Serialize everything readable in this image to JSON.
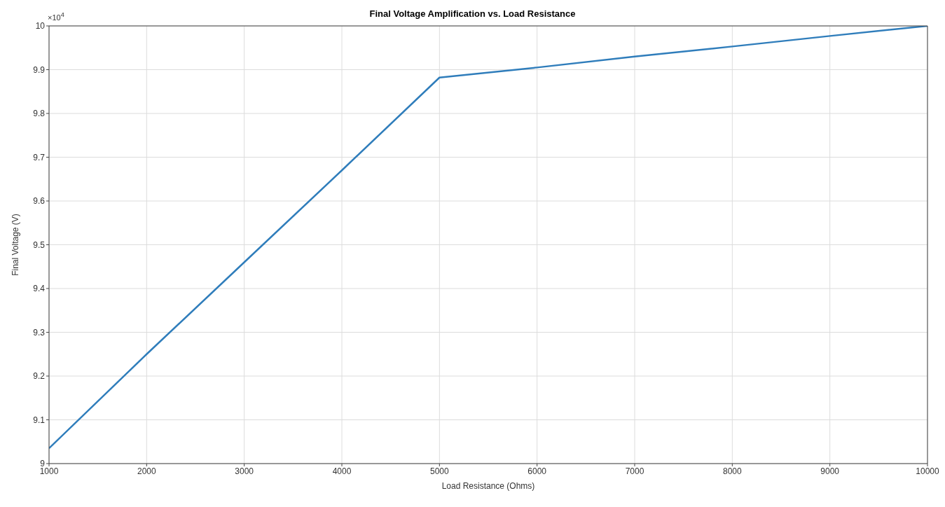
{
  "chart_data": {
    "type": "line",
    "title": "Final Voltage Amplification vs. Load Resistance",
    "xlabel": "Load Resistance (Ohms)",
    "ylabel": "Final Voltage (V)",
    "annotations": [
      "×10$^{4}$"
    ],
    "x": [
      1000,
      2000,
      3000,
      4000,
      5000,
      6000,
      7000,
      8000,
      9000,
      10000
    ],
    "series": [
      {
        "color": "#2f7dbb",
        "values": [
          9.035,
          9.25,
          9.46,
          9.67,
          9.882,
          9.905,
          9.93,
          9.953,
          9.977,
          10.0
        ]
      }
    ],
    "xlim": [
      1000,
      10000
    ],
    "xticks": [
      1000,
      2000,
      3000,
      4000,
      5000,
      6000,
      7000,
      8000,
      9000,
      10000
    ],
    "ylim": [
      9,
      10
    ],
    "yticks": [
      9,
      9.1,
      9.2,
      9.3,
      9.4,
      9.5,
      9.6,
      9.7,
      9.8,
      9.9,
      10
    ],
    "grid": true
  }
}
